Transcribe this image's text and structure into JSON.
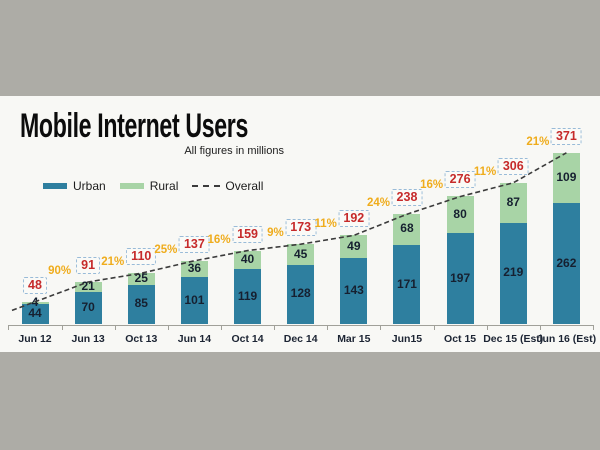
{
  "header": {
    "title": "Mobile Internet Users",
    "subtitle": "All figures in millions"
  },
  "legend": {
    "urban": "Urban",
    "rural": "Rural",
    "overall": "Overall"
  },
  "colors": {
    "urban": "#2E7F9F",
    "rural": "#A8D4A6",
    "overall_line": "#3B3B3B",
    "total_text": "#C62A2A",
    "total_border": "#99BBD8",
    "growth_text": "#EFAC1C",
    "background": "#ADACA6",
    "canvas": "#F8F8F5",
    "value_text": "#162030",
    "axis": "#A0A099"
  },
  "chart_data": {
    "type": "bar",
    "stacked": true,
    "title": "Mobile Internet Users",
    "subtitle": "All figures in millions",
    "unit": "millions",
    "grid": false,
    "legend_position": "top-left",
    "ylim": [
      0,
      390
    ],
    "categories": [
      "Jun 12",
      "Jun 13",
      "Oct 13",
      "Jun 14",
      "Oct 14",
      "Dec 14",
      "Mar 15",
      "Jun15",
      "Oct 15",
      "Dec 15 (Est)",
      "Jun 16 (Est)"
    ],
    "series": [
      {
        "name": "Urban",
        "values": [
          44,
          70,
          85,
          101,
          119,
          128,
          143,
          171,
          197,
          219,
          262
        ]
      },
      {
        "name": "Rural",
        "values": [
          4,
          21,
          25,
          36,
          40,
          45,
          49,
          68,
          80,
          87,
          109
        ]
      }
    ],
    "overall": {
      "name": "Overall",
      "style": "dashed-line",
      "values": [
        48,
        91,
        110,
        137,
        159,
        173,
        192,
        238,
        276,
        306,
        371
      ]
    },
    "growth_pct": [
      null,
      "90%",
      "21%",
      "25%",
      "16%",
      "9%",
      "11%",
      "24%",
      "16%",
      "11%",
      "21%"
    ]
  }
}
